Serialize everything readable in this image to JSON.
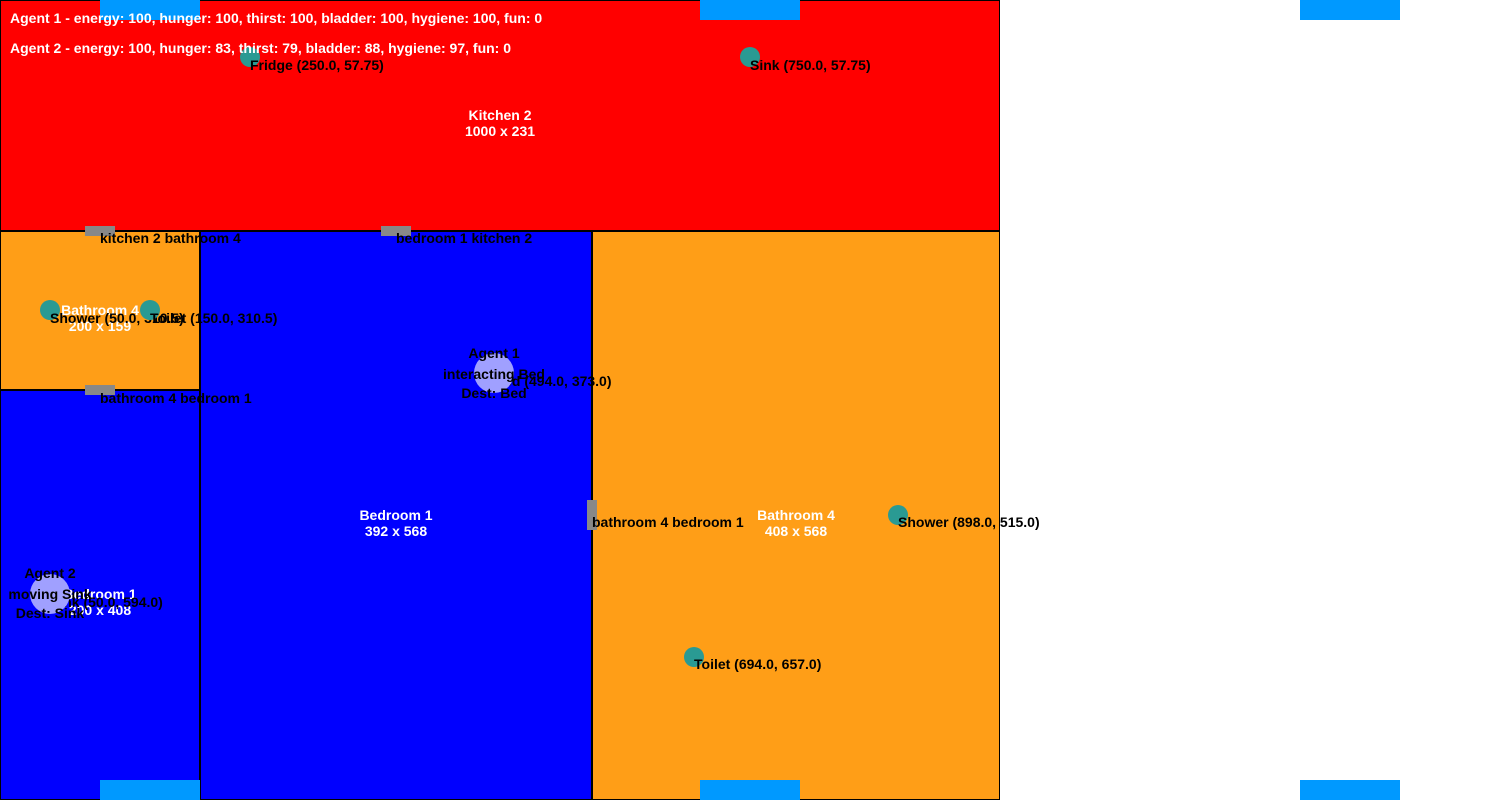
{
  "colors": {
    "kitchen": "#ff0000",
    "bathroom": "#ff9e17",
    "bedroom": "#0000ff",
    "door": "#888888",
    "object": "#2a9a93",
    "agent": "#a0a0ff",
    "window": "#0099ff"
  },
  "status": {
    "agent1": "Agent 1 - energy: 100, hunger: 100, thirst: 100, bladder: 100, hygiene: 100, fun: 0",
    "agent2": "Agent 2 - energy: 100, hunger: 83, thirst: 79, bladder: 88, hygiene: 97, fun: 0"
  },
  "rooms": {
    "kitchen2": {
      "name": "Kitchen 2",
      "size": "1000 x 231"
    },
    "bathroom_small": {
      "name": "Bathroom 4",
      "size": "200 x 159"
    },
    "bedroom_small": {
      "name": "Bedroom 1",
      "size": "200 x 408"
    },
    "bedroom1": {
      "name": "Bedroom 1",
      "size": "392 x 568"
    },
    "bathroom4": {
      "name": "Bathroom 4",
      "size": "408 x 568"
    }
  },
  "doors": {
    "d1": "kitchen 2 bathroom 4",
    "d2": "bedroom 1 kitchen 2",
    "d3": "bathroom 4 bedroom 1",
    "d4": "bathroom 4 bedroom 1"
  },
  "objects": {
    "fridge": "Fridge (250.0, 57.75)",
    "sink": "Sink (750.0, 57.75)",
    "shower_small": "Shower (50.0, 310.5)",
    "toilet_small": "Toilet (150.0, 310.5)",
    "bed": "Bed (494.0, 373.0)",
    "sink_bedroom": "Sink (50.0, 594.0)",
    "shower4": "Shower (898.0, 515.0)",
    "toilet4": "Toilet (694.0, 657.0)"
  },
  "agents": {
    "a1": {
      "name": "Agent 1",
      "action": "interacting Bed",
      "dest": "Dest: Bed"
    },
    "a2": {
      "name": "Agent 2",
      "action": "moving Sink",
      "dest": "Dest: Sink"
    }
  }
}
